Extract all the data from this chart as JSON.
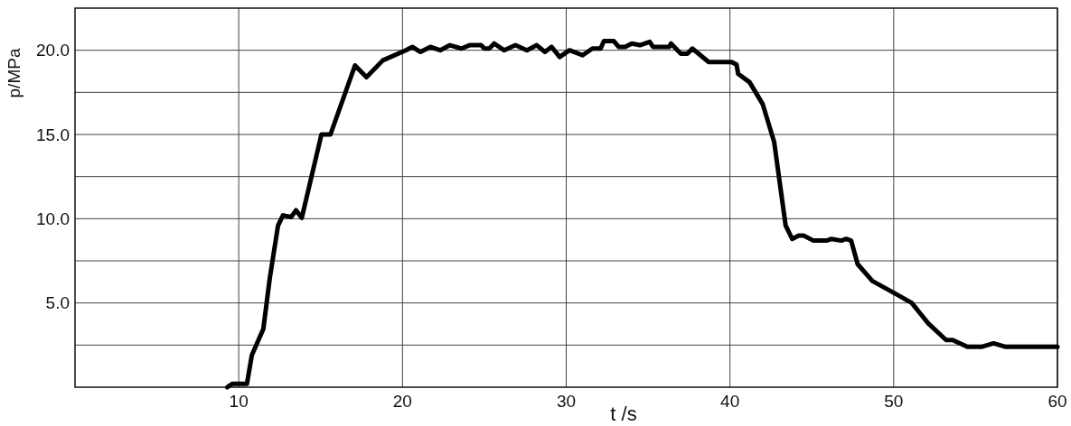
{
  "chart_data": {
    "type": "line",
    "xlabel": "t /s",
    "ylabel": "p/MPa",
    "xlim": [
      0,
      60
    ],
    "xticks": [
      10,
      20,
      30,
      40,
      50,
      60
    ],
    "ylim": [
      0,
      22.5
    ],
    "yticks": [
      {
        "value": 2.5,
        "label": null
      },
      {
        "value": 5,
        "label": "5.0"
      },
      {
        "value": 7.5,
        "label": null
      },
      {
        "value": 10,
        "label": "10.0"
      },
      {
        "value": 12.5,
        "label": null
      },
      {
        "value": 15,
        "label": "15.0"
      },
      {
        "value": 17.5,
        "label": null
      },
      {
        "value": 20,
        "label": "20.0"
      }
    ],
    "grid": true,
    "marker": "none",
    "line_style": "solid",
    "series": [
      {
        "color": "#000000",
        "x": [
          9.3,
          9.6,
          10.5,
          10.8,
          11.5,
          11.9,
          12.4,
          12.7,
          13.2,
          13.5,
          13.85,
          15.05,
          15.6,
          17.1,
          17.8,
          18.8,
          20.2,
          20.6,
          21.1,
          21.7,
          22.3,
          22.9,
          23.6,
          24.1,
          24.8,
          25.0,
          25.3,
          25.6,
          26.2,
          26.9,
          27.6,
          28.2,
          28.7,
          29.1,
          29.6,
          30.2,
          31.0,
          31.6,
          32.1,
          32.3,
          32.9,
          33.2,
          33.6,
          34.0,
          34.5,
          35.1,
          35.3,
          36.3,
          36.4,
          37.0,
          37.4,
          37.7,
          38.7,
          40.1,
          40.4,
          40.5,
          41.2,
          42.0,
          42.7,
          43.4,
          43.8,
          44.2,
          44.5,
          45.1,
          45.9,
          46.2,
          46.8,
          47.1,
          47.4,
          47.8,
          48.7,
          50.2,
          51.1,
          52.1,
          53.2,
          53.6,
          54.5,
          55.4,
          56.1,
          56.8,
          60.0
        ],
        "values": [
          0,
          0.2,
          0.2,
          1.9,
          3.45,
          6.5,
          9.6,
          10.2,
          10.1,
          10.5,
          10.05,
          15.0,
          15.0,
          19.1,
          18.4,
          19.4,
          20.0,
          20.2,
          19.9,
          20.2,
          20.0,
          20.3,
          20.1,
          20.3,
          20.3,
          20.1,
          20.1,
          20.4,
          20.0,
          20.3,
          20.0,
          20.3,
          19.9,
          20.2,
          19.6,
          20.0,
          19.7,
          20.1,
          20.1,
          20.55,
          20.55,
          20.2,
          20.2,
          20.4,
          20.3,
          20.5,
          20.2,
          20.2,
          20.4,
          19.8,
          19.8,
          20.1,
          19.3,
          19.3,
          19.15,
          18.6,
          18.1,
          16.8,
          14.55,
          9.6,
          8.8,
          9.0,
          9.0,
          8.7,
          8.7,
          8.8,
          8.7,
          8.8,
          8.7,
          7.3,
          6.3,
          5.5,
          5.0,
          3.8,
          2.8,
          2.8,
          2.4,
          2.4,
          2.6,
          2.4,
          2.4
        ]
      }
    ]
  }
}
